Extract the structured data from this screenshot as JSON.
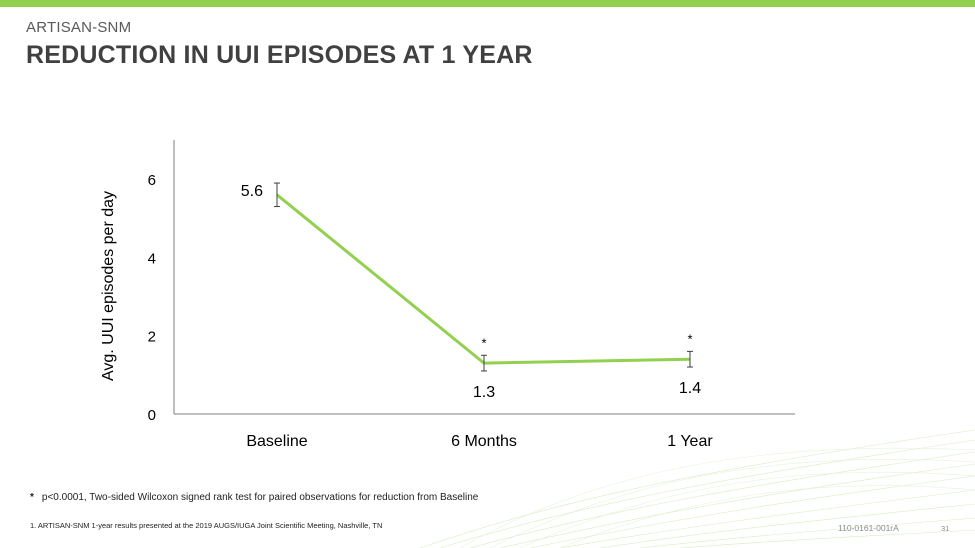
{
  "header": {
    "kicker": "ARTISAN-SNM",
    "title": "REDUCTION IN UUI EPISODES AT 1 YEAR"
  },
  "colors": {
    "accent": "#92d050",
    "line": "#92d050",
    "axis": "#7f7f7f",
    "text": "#404040"
  },
  "chart_data": {
    "type": "line",
    "categories": [
      "Baseline",
      "6 Months",
      "1 Year"
    ],
    "values": [
      5.6,
      1.3,
      1.4
    ],
    "data_labels": [
      "5.6",
      "1.3",
      "1.4"
    ],
    "significance_markers": [
      "",
      "*",
      "*"
    ],
    "error_bars": [
      [
        5.3,
        5.9
      ],
      [
        1.1,
        1.5
      ],
      [
        1.2,
        1.6
      ]
    ],
    "ylabel": "Avg. UUI episodes per day",
    "xlabel": "",
    "ylim": [
      0,
      7
    ],
    "yticks": [
      0,
      2,
      4,
      6
    ],
    "grid": false,
    "legend": "none"
  },
  "footnote": {
    "marker": "*",
    "text": "p<0.0001, Two-sided Wilcoxon signed rank test for paired observations for reduction from Baseline"
  },
  "reference": "1.  ARTISAN-SNM 1-year results presented at the 2019 AUGS/IUGA Joint Scientific Meeting, Nashville, TN",
  "doc_code": "110-0161-001rA",
  "page_number": "31"
}
